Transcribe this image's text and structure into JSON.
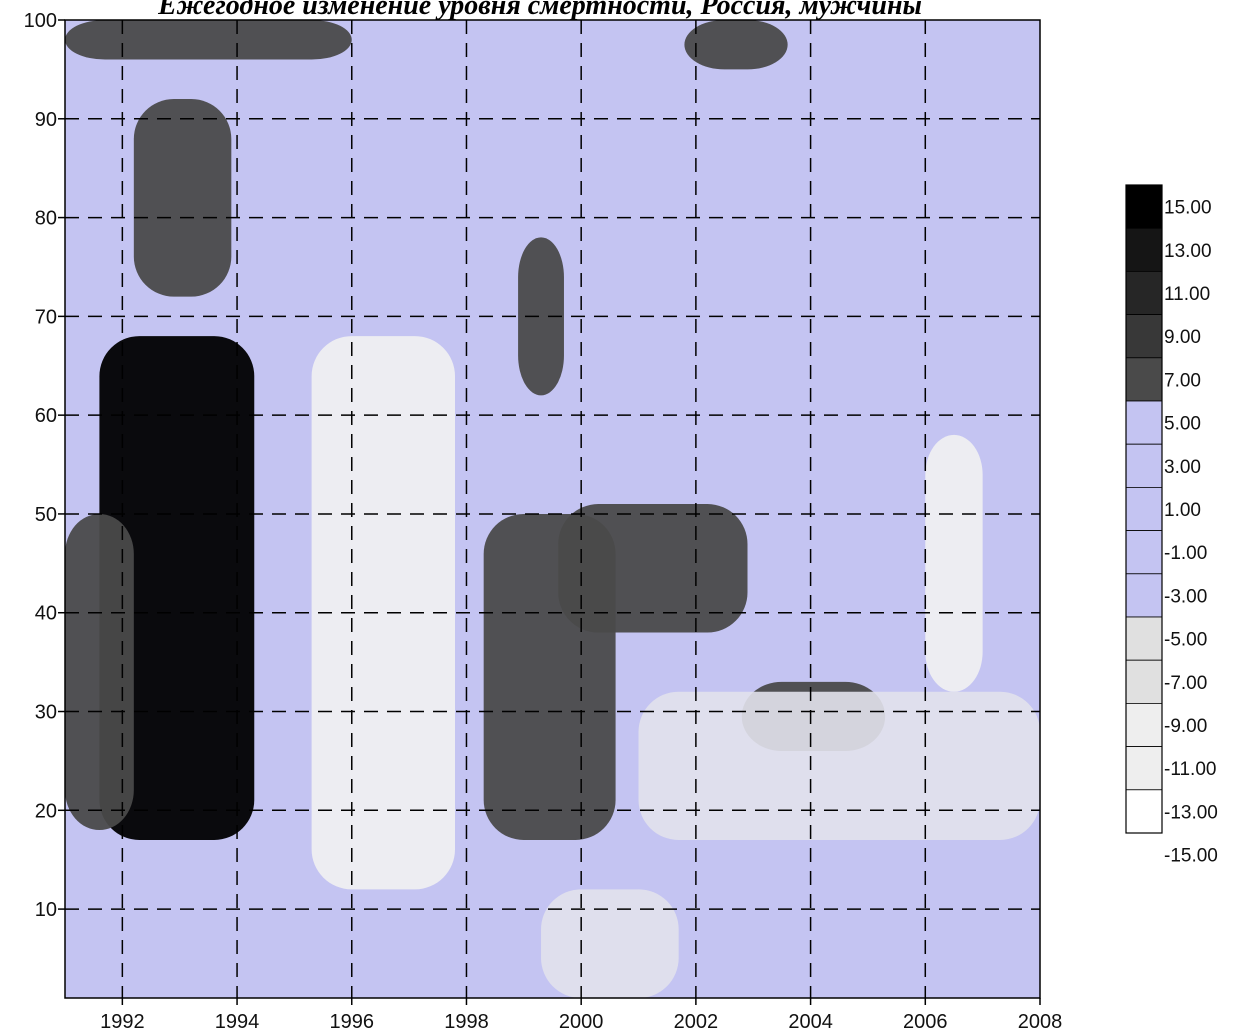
{
  "chart_data": {
    "type": "heatmap",
    "title": "Ежегодное изменение уровня смертности, Россия, мужчины",
    "xlabel": "",
    "ylabel": "",
    "x_ticks": [
      "1992",
      "1994",
      "1996",
      "1998",
      "2000",
      "2002",
      "2004",
      "2006",
      "2008"
    ],
    "y_ticks": [
      "10",
      "20",
      "30",
      "40",
      "50",
      "60",
      "70",
      "80",
      "90",
      "100"
    ],
    "xlim": [
      1991,
      2008
    ],
    "ylim": [
      1,
      100
    ],
    "grid": true,
    "grid_style": "dashed",
    "colorbar": {
      "placement": "right",
      "min": -15,
      "max": 15,
      "labels": [
        "15.00",
        "13.00",
        "11.00",
        "9.00",
        "7.00",
        "5.00",
        "3.00",
        "1.00",
        "-1.00",
        "-3.00",
        "-5.00",
        "-7.00",
        "-9.00",
        "-11.00",
        "-13.00",
        "-15.00"
      ],
      "colors": {
        "background_band": "#c4c4f2",
        "positive_high": "#000000",
        "positive_mid": "#505050",
        "negative_low": "#ececec"
      }
    },
    "regions": [
      {
        "x": [
          1991.6,
          1994.3
        ],
        "y": [
          17,
          68
        ],
        "value": 15
      },
      {
        "x": [
          1991.0,
          1992.2
        ],
        "y": [
          18,
          50
        ],
        "value": 9
      },
      {
        "x": [
          1992.2,
          1993.9
        ],
        "y": [
          72,
          92
        ],
        "value": 9
      },
      {
        "x": [
          1998.3,
          2000.6
        ],
        "y": [
          17,
          50
        ],
        "value": 9
      },
      {
        "x": [
          1999.6,
          2002.9
        ],
        "y": [
          38,
          51
        ],
        "value": 7
      },
      {
        "x": [
          2002.8,
          2005.3
        ],
        "y": [
          26,
          33
        ],
        "value": 7
      },
      {
        "x": [
          1998.9,
          1999.7
        ],
        "y": [
          62,
          78
        ],
        "value": 7
      },
      {
        "x": [
          1991.0,
          1996.0
        ],
        "y": [
          96,
          100
        ],
        "value": 7
      },
      {
        "x": [
          2001.8,
          2003.6
        ],
        "y": [
          95,
          100
        ],
        "value": 7
      },
      {
        "x": [
          1995.3,
          1997.8
        ],
        "y": [
          12,
          68
        ],
        "value": -9
      },
      {
        "x": [
          2006.0,
          2007.0
        ],
        "y": [
          32,
          58
        ],
        "value": -9
      },
      {
        "x": [
          2001.0,
          2008.0
        ],
        "y": [
          17,
          32
        ],
        "value": -7
      },
      {
        "x": [
          1999.3,
          2001.7
        ],
        "y": [
          1,
          12
        ],
        "value": -7
      }
    ]
  }
}
